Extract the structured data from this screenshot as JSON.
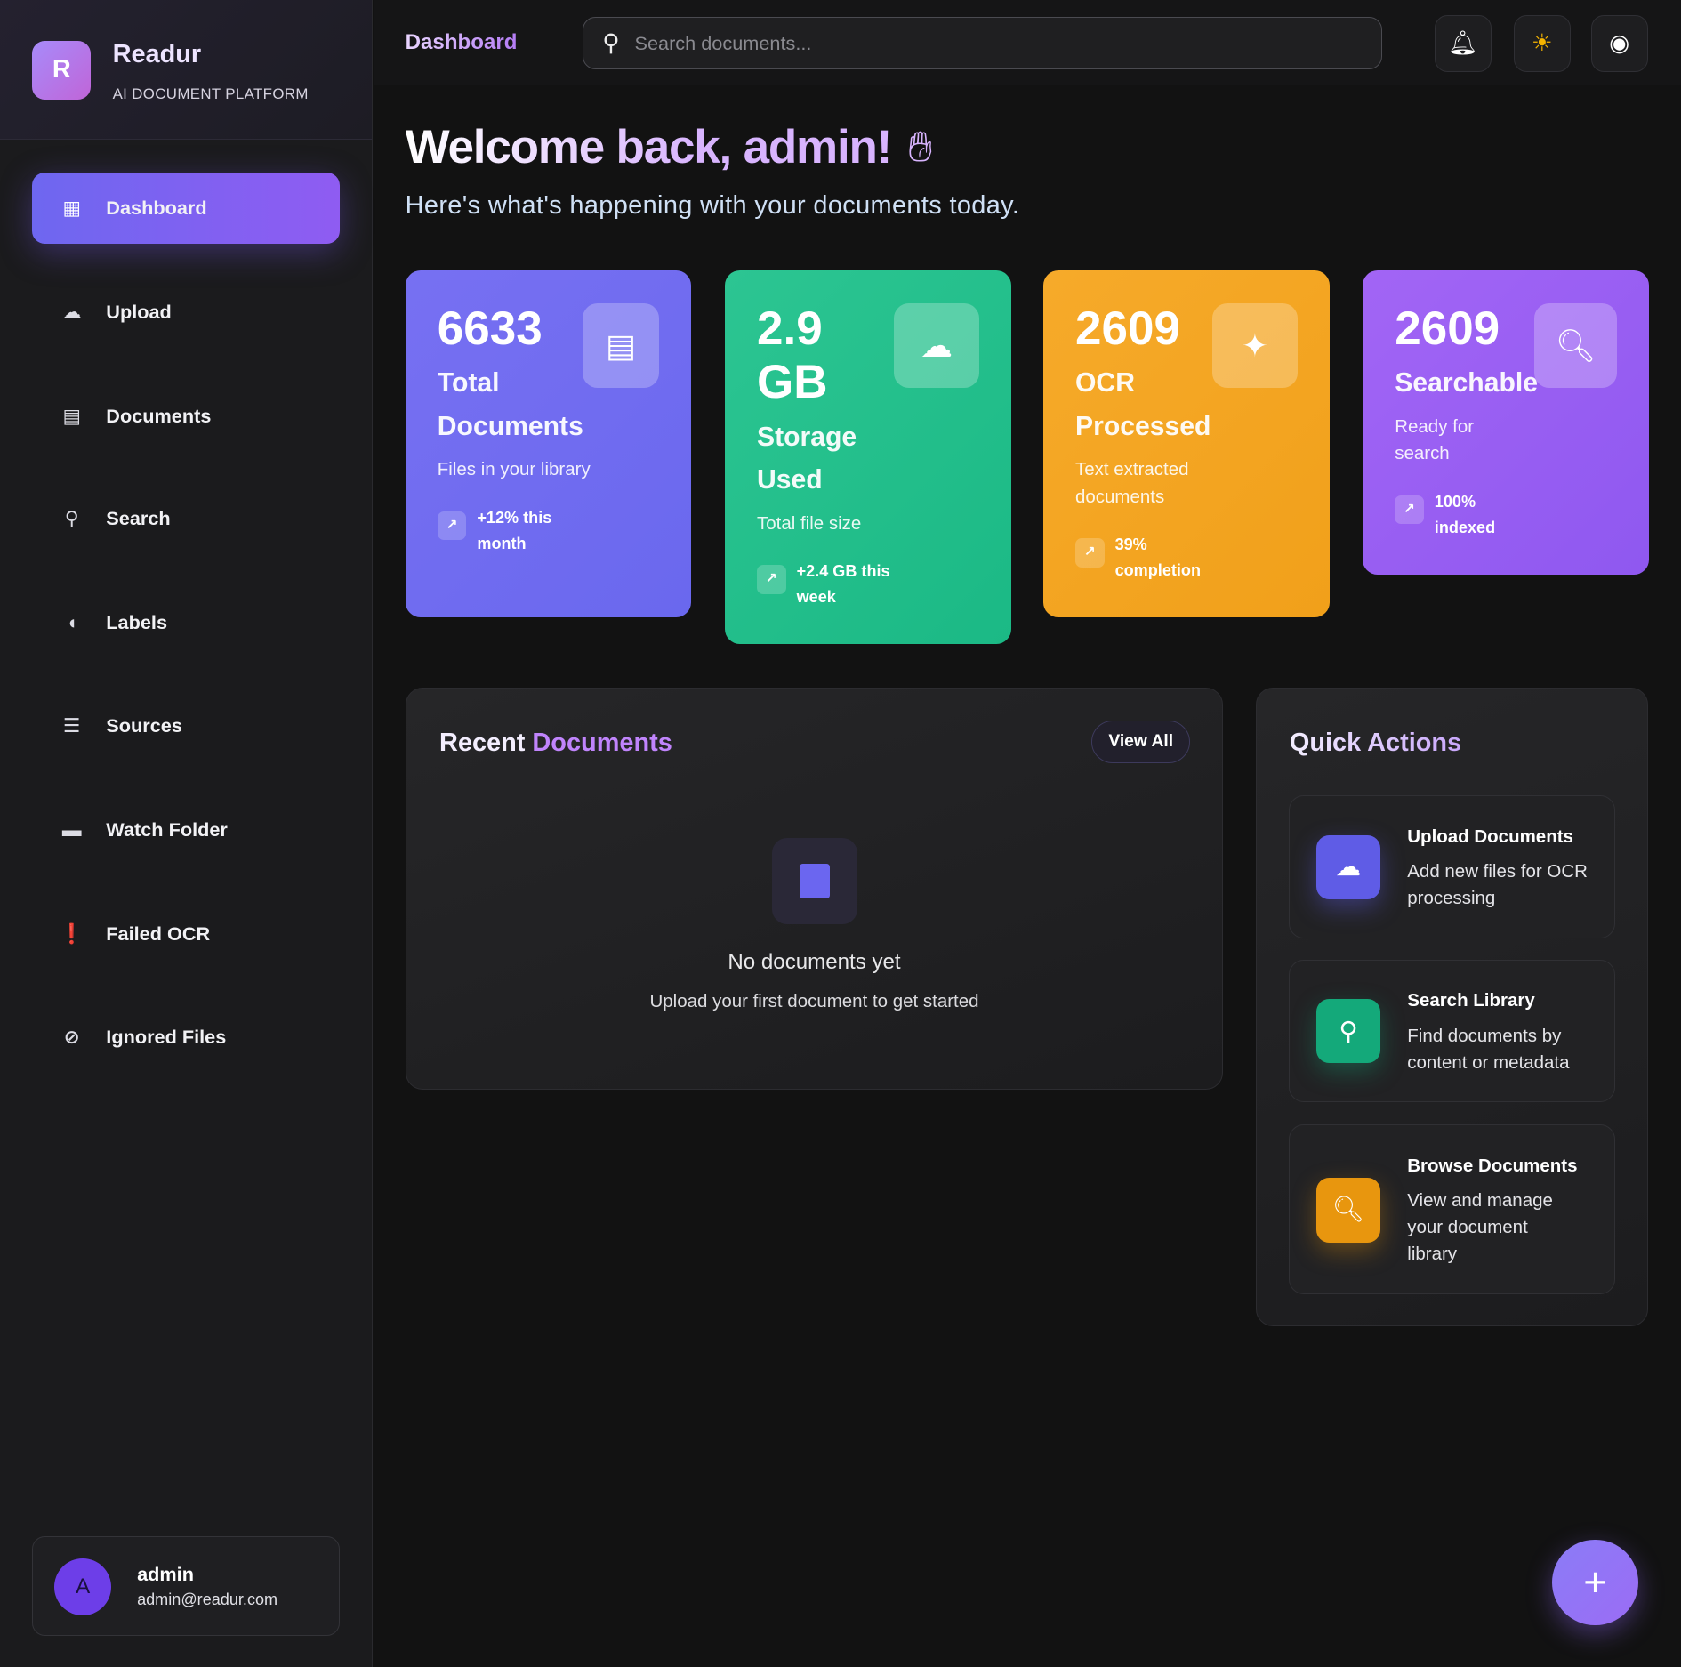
{
  "brand": {
    "logo_letter": "R",
    "name": "Readur",
    "tagline": "AI DOCUMENT PLATFORM"
  },
  "sidebar": {
    "items": [
      {
        "label": "Dashboard",
        "icon": "dashboard-icon",
        "active": true
      },
      {
        "label": "Upload",
        "icon": "cloud-upload-icon"
      },
      {
        "label": "Documents",
        "icon": "document-icon"
      },
      {
        "label": "Search",
        "icon": "search-icon"
      },
      {
        "label": "Labels",
        "icon": "label-icon"
      },
      {
        "label": "Sources",
        "icon": "storage-list-icon"
      },
      {
        "label": "Watch Folder",
        "icon": "folder-icon"
      },
      {
        "label": "Failed OCR",
        "icon": "error-icon"
      },
      {
        "label": "Ignored Files",
        "icon": "block-icon"
      }
    ],
    "user": {
      "avatar_letter": "A",
      "name": "admin",
      "email": "admin@readur.com"
    }
  },
  "header": {
    "title": "Dashboard",
    "search_placeholder": "Search documents...",
    "icons": [
      "bell-icon",
      "theme-sun-icon",
      "account-icon"
    ]
  },
  "welcome": {
    "title": "Welcome back, admin!",
    "subtitle": "Here's what's happening with your documents today."
  },
  "stats": [
    {
      "value": "6633",
      "label": "Total Documents",
      "desc": "Files in your library",
      "trend": "+12% this month",
      "color": "#6f6cf0",
      "icon": "document-icon"
    },
    {
      "value": "2.9 GB",
      "label": "Storage Used",
      "desc": "Total file size",
      "trend": "+2.4 GB this week",
      "color": "#20bf88",
      "icon": "cloud-done-icon"
    },
    {
      "value": "2609",
      "label": "OCR Processed",
      "desc": "Text extracted documents",
      "trend": "39% completion",
      "color": "#f4a41f",
      "icon": "sparkle-icon"
    },
    {
      "value": "2609",
      "label": "Searchable",
      "desc": "Ready for search",
      "trend": "100% indexed",
      "color": "#9a5ef4",
      "icon": "find-in-page-icon"
    }
  ],
  "recent": {
    "title_a": "Recent",
    "title_b": "Documents",
    "view_all": "View All",
    "empty_title": "No documents yet",
    "empty_sub": "Upload your first document to get started"
  },
  "quick": {
    "title": "Quick Actions",
    "items": [
      {
        "title": "Upload Documents",
        "desc": "Add new files for OCR processing",
        "color": "#5f5ce6",
        "icon": "cloud-upload-icon"
      },
      {
        "title": "Search Library",
        "desc": "Find documents by content or metadata",
        "color": "#14a97a",
        "icon": "search-icon"
      },
      {
        "title": "Browse Documents",
        "desc": "View and manage your document library",
        "color": "#e8960e",
        "icon": "find-in-page-icon"
      }
    ]
  },
  "fab": {
    "label": "+"
  }
}
